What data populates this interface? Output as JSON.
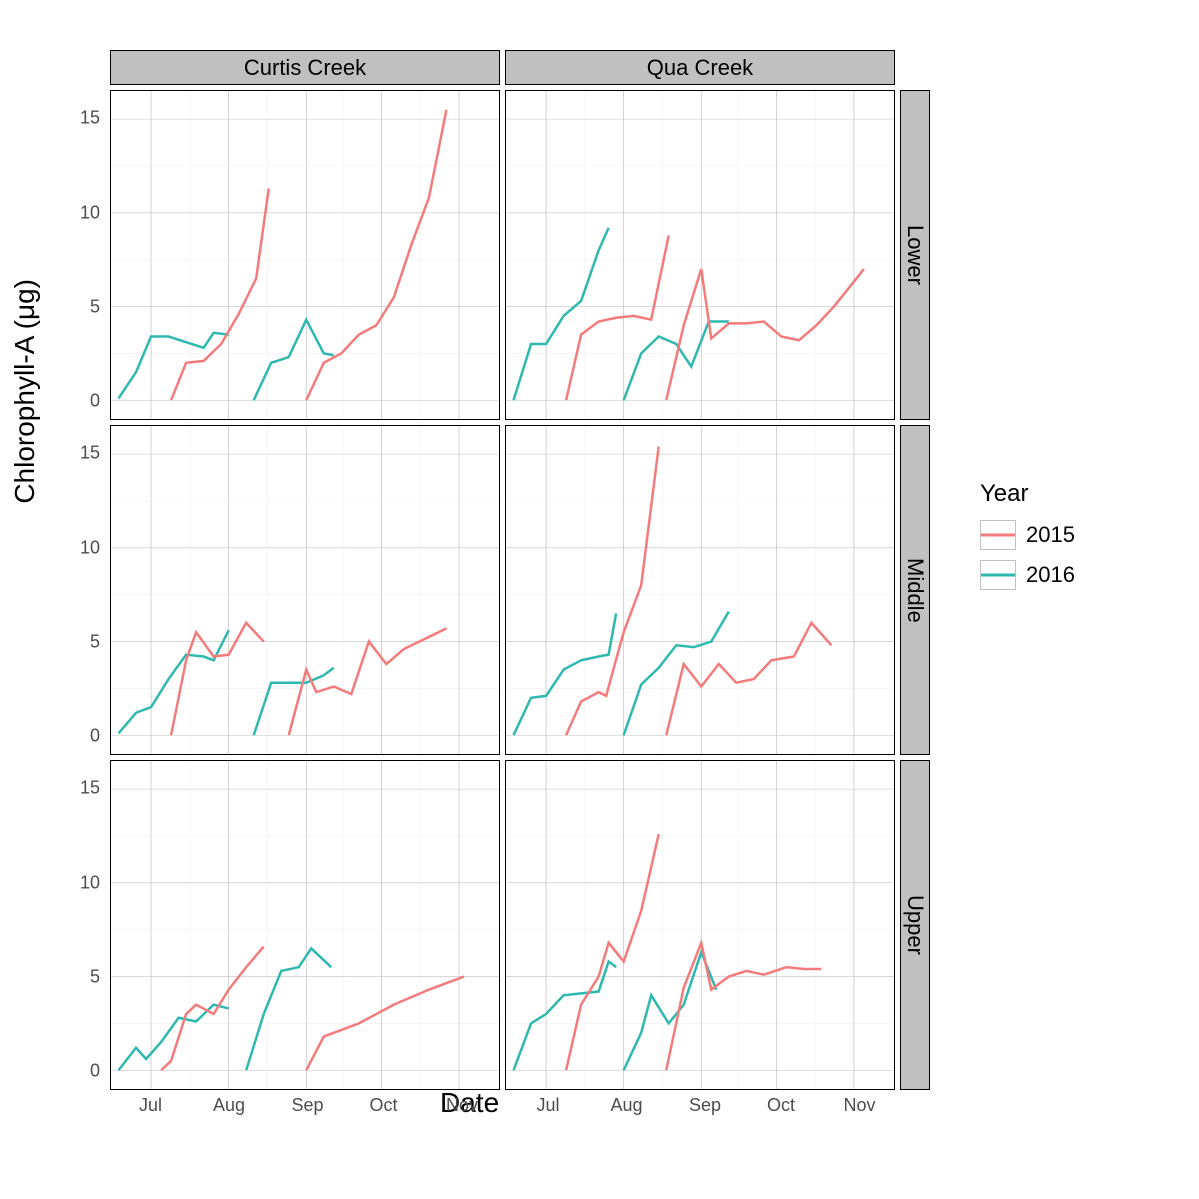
{
  "axis": {
    "y_title": "Chlorophyll-A (μg)",
    "x_title": "Date",
    "ylim": [
      -1,
      16.5
    ],
    "y_ticks": [
      0,
      5,
      10,
      15
    ],
    "xlim": [
      0,
      155
    ],
    "x_ticks": [
      {
        "pos": 16,
        "label": "Jul"
      },
      {
        "pos": 47,
        "label": "Aug"
      },
      {
        "pos": 78,
        "label": "Sep"
      },
      {
        "pos": 108,
        "label": "Oct"
      },
      {
        "pos": 139,
        "label": "Nov"
      }
    ]
  },
  "colors": {
    "2015": "#f47b7b",
    "2016": "#2fb8b0",
    "grid": "#c0c0c0",
    "grid_minor": "#e5e5e5",
    "strip_bg": "#c0c0c0",
    "panel_bg": "#ffffff",
    "text": "#000000",
    "tick_text": "#4d4d4d"
  },
  "legend": {
    "title": "Year",
    "items": [
      {
        "label": "2015",
        "color_key": "2015"
      },
      {
        "label": "2016",
        "color_key": "2016"
      }
    ]
  },
  "col_labels": [
    "Curtis Creek",
    "Qua Creek"
  ],
  "row_labels": [
    "Lower",
    "Middle",
    "Upper"
  ],
  "panels": [
    {
      "row": 0,
      "col": 0,
      "series": [
        {
          "year": "2016",
          "pts": [
            [
              3,
              0.1
            ],
            [
              10,
              1.5
            ],
            [
              16,
              3.4
            ],
            [
              23,
              3.4
            ],
            [
              30,
              3.1
            ],
            [
              37,
              2.8
            ],
            [
              41,
              3.6
            ],
            [
              47,
              3.5
            ]
          ]
        },
        {
          "year": "2015",
          "pts": [
            [
              24,
              0
            ],
            [
              30,
              2.0
            ],
            [
              37,
              2.1
            ],
            [
              44,
              3.0
            ],
            [
              51,
              4.6
            ],
            [
              58,
              6.5
            ],
            [
              63,
              11.3
            ]
          ]
        },
        {
          "year": "2016",
          "pts": [
            [
              57,
              0
            ],
            [
              64,
              2.0
            ],
            [
              71,
              2.3
            ],
            [
              78,
              4.3
            ],
            [
              85,
              2.5
            ],
            [
              89,
              2.4
            ]
          ]
        },
        {
          "year": "2015",
          "pts": [
            [
              78,
              0
            ],
            [
              85,
              2.0
            ],
            [
              92,
              2.5
            ],
            [
              99,
              3.5
            ],
            [
              106,
              4.0
            ],
            [
              113,
              5.5
            ],
            [
              120,
              8.3
            ],
            [
              127,
              10.8
            ],
            [
              134,
              15.5
            ]
          ]
        }
      ]
    },
    {
      "row": 0,
      "col": 1,
      "series": [
        {
          "year": "2016",
          "pts": [
            [
              3,
              0
            ],
            [
              10,
              3.0
            ],
            [
              16,
              3.0
            ],
            [
              23,
              4.5
            ],
            [
              30,
              5.3
            ],
            [
              37,
              8.0
            ],
            [
              41,
              9.2
            ]
          ]
        },
        {
          "year": "2015",
          "pts": [
            [
              24,
              0
            ],
            [
              30,
              3.5
            ],
            [
              37,
              4.2
            ],
            [
              44,
              4.4
            ],
            [
              51,
              4.5
            ],
            [
              58,
              4.3
            ],
            [
              65,
              8.8
            ]
          ]
        },
        {
          "year": "2016",
          "pts": [
            [
              47,
              0
            ],
            [
              54,
              2.5
            ],
            [
              61,
              3.4
            ],
            [
              68,
              3.0
            ],
            [
              74,
              1.8
            ],
            [
              81,
              4.2
            ],
            [
              89,
              4.2
            ]
          ]
        },
        {
          "year": "2015",
          "pts": [
            [
              64,
              0
            ],
            [
              71,
              4.0
            ],
            [
              78,
              7.0
            ],
            [
              82,
              3.3
            ],
            [
              89,
              4.1
            ],
            [
              96,
              4.1
            ],
            [
              103,
              4.2
            ],
            [
              110,
              3.4
            ],
            [
              117,
              3.2
            ],
            [
              124,
              4.0
            ],
            [
              131,
              5.0
            ],
            [
              143,
              7.0
            ]
          ]
        }
      ]
    },
    {
      "row": 1,
      "col": 0,
      "series": [
        {
          "year": "2016",
          "pts": [
            [
              3,
              0.1
            ],
            [
              10,
              1.2
            ],
            [
              16,
              1.5
            ],
            [
              23,
              3.0
            ],
            [
              30,
              4.3
            ],
            [
              37,
              4.2
            ],
            [
              41,
              4.0
            ],
            [
              47,
              5.6
            ]
          ]
        },
        {
          "year": "2015",
          "pts": [
            [
              24,
              0
            ],
            [
              30,
              4.0
            ],
            [
              34,
              5.5
            ],
            [
              41,
              4.2
            ],
            [
              47,
              4.3
            ],
            [
              54,
              6.0
            ],
            [
              61,
              5.0
            ]
          ]
        },
        {
          "year": "2016",
          "pts": [
            [
              57,
              0
            ],
            [
              64,
              2.8
            ],
            [
              71,
              2.8
            ],
            [
              78,
              2.8
            ],
            [
              85,
              3.2
            ],
            [
              89,
              3.6
            ]
          ]
        },
        {
          "year": "2015",
          "pts": [
            [
              71,
              0
            ],
            [
              78,
              3.5
            ],
            [
              82,
              2.3
            ],
            [
              89,
              2.6
            ],
            [
              96,
              2.2
            ],
            [
              103,
              5.0
            ],
            [
              110,
              3.8
            ],
            [
              117,
              4.6
            ],
            [
              134,
              5.7
            ]
          ]
        }
      ]
    },
    {
      "row": 1,
      "col": 1,
      "series": [
        {
          "year": "2016",
          "pts": [
            [
              3,
              0
            ],
            [
              10,
              2.0
            ],
            [
              16,
              2.1
            ],
            [
              23,
              3.5
            ],
            [
              30,
              4.0
            ],
            [
              37,
              4.2
            ],
            [
              41,
              4.3
            ],
            [
              44,
              6.5
            ]
          ]
        },
        {
          "year": "2015",
          "pts": [
            [
              24,
              0
            ],
            [
              30,
              1.8
            ],
            [
              37,
              2.3
            ],
            [
              40,
              2.1
            ],
            [
              47,
              5.5
            ],
            [
              54,
              8.0
            ],
            [
              61,
              15.4
            ]
          ]
        },
        {
          "year": "2016",
          "pts": [
            [
              47,
              0
            ],
            [
              54,
              2.7
            ],
            [
              61,
              3.6
            ],
            [
              68,
              4.8
            ],
            [
              75,
              4.7
            ],
            [
              82,
              5.0
            ],
            [
              89,
              6.6
            ]
          ]
        },
        {
          "year": "2015",
          "pts": [
            [
              64,
              0
            ],
            [
              71,
              3.8
            ],
            [
              78,
              2.6
            ],
            [
              85,
              3.8
            ],
            [
              92,
              2.8
            ],
            [
              99,
              3.0
            ],
            [
              106,
              4.0
            ],
            [
              115,
              4.2
            ],
            [
              122,
              6.0
            ],
            [
              130,
              4.8
            ]
          ]
        }
      ]
    },
    {
      "row": 2,
      "col": 0,
      "series": [
        {
          "year": "2016",
          "pts": [
            [
              3,
              0
            ],
            [
              10,
              1.2
            ],
            [
              14,
              0.6
            ],
            [
              20,
              1.5
            ],
            [
              27,
              2.8
            ],
            [
              34,
              2.6
            ],
            [
              41,
              3.5
            ],
            [
              47,
              3.3
            ]
          ]
        },
        {
          "year": "2015",
          "pts": [
            [
              20,
              0
            ],
            [
              24,
              0.5
            ],
            [
              30,
              3.0
            ],
            [
              34,
              3.5
            ],
            [
              41,
              3.0
            ],
            [
              47,
              4.3
            ],
            [
              54,
              5.5
            ],
            [
              61,
              6.6
            ]
          ]
        },
        {
          "year": "2016",
          "pts": [
            [
              54,
              0
            ],
            [
              61,
              3.0
            ],
            [
              68,
              5.3
            ],
            [
              75,
              5.5
            ],
            [
              80,
              6.5
            ],
            [
              88,
              5.5
            ]
          ]
        },
        {
          "year": "2015",
          "pts": [
            [
              78,
              0
            ],
            [
              85,
              1.8
            ],
            [
              99,
              2.5
            ],
            [
              113,
              3.5
            ],
            [
              127,
              4.3
            ],
            [
              141,
              5.0
            ]
          ]
        }
      ]
    },
    {
      "row": 2,
      "col": 1,
      "series": [
        {
          "year": "2016",
          "pts": [
            [
              3,
              0
            ],
            [
              10,
              2.5
            ],
            [
              16,
              3.0
            ],
            [
              23,
              4.0
            ],
            [
              30,
              4.1
            ],
            [
              37,
              4.2
            ],
            [
              41,
              5.8
            ],
            [
              44,
              5.5
            ]
          ]
        },
        {
          "year": "2015",
          "pts": [
            [
              24,
              0
            ],
            [
              30,
              3.5
            ],
            [
              37,
              5.0
            ],
            [
              41,
              6.8
            ],
            [
              47,
              5.8
            ],
            [
              54,
              8.5
            ],
            [
              61,
              12.6
            ]
          ]
        },
        {
          "year": "2016",
          "pts": [
            [
              47,
              0
            ],
            [
              54,
              2.0
            ],
            [
              58,
              4.0
            ],
            [
              65,
              2.5
            ],
            [
              71,
              3.5
            ],
            [
              78,
              6.3
            ],
            [
              84,
              4.3
            ]
          ]
        },
        {
          "year": "2015",
          "pts": [
            [
              64,
              0
            ],
            [
              71,
              4.4
            ],
            [
              78,
              6.8
            ],
            [
              82,
              4.3
            ],
            [
              89,
              5.0
            ],
            [
              96,
              5.3
            ],
            [
              103,
              5.1
            ],
            [
              112,
              5.5
            ],
            [
              119,
              5.4
            ],
            [
              126,
              5.4
            ]
          ]
        }
      ]
    }
  ]
}
